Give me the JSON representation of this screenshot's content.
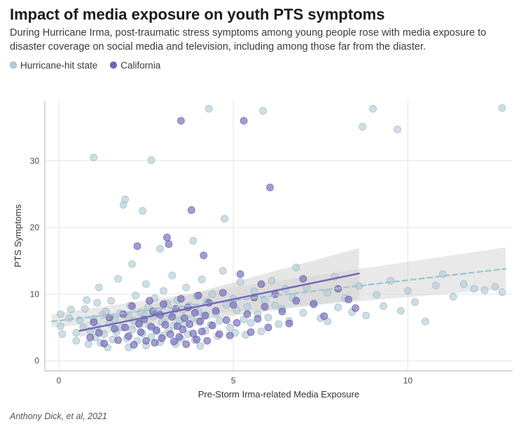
{
  "title": "Impact of media exposure on youth PTS symptoms",
  "subtitle": "During Hurricane Irma,  post-traumatic stress symptoms among young people rose with media exposure to disaster coverage on social media and television, including among those far from the diaster.",
  "credit": "Anthony Dick, et al, 2021",
  "legend": {
    "series1": {
      "label": "Hurricane-hit state",
      "color": "#b4cdd6"
    },
    "series2": {
      "label": "California",
      "color": "#7267b7"
    }
  },
  "chart": {
    "type": "scatter",
    "xlabel": "Pre-Storm Irma-related Media Exposure",
    "ylabel": "PTS Symptoms",
    "xlim": [
      -0.4,
      13.0
    ],
    "ylim": [
      -1.5,
      39
    ],
    "xticks": [
      0,
      5,
      10
    ],
    "yticks": [
      0,
      10,
      20,
      30
    ],
    "background_color": "#ffffff",
    "panel_bg": "#ffffff",
    "grid_color": "#e4e4e4",
    "axis_color": "#bdbdbd",
    "label_fontsize": 13,
    "tick_fontsize": 12,
    "marker_radius": 5,
    "marker_opacity": 0.65,
    "series": {
      "hurricane": {
        "color": "#b4cdd6",
        "stroke": "#8ab1bf",
        "line": {
          "x1": -0.2,
          "y1": 5.9,
          "x2": 12.8,
          "y2": 13.8,
          "dash": "7,5",
          "width": 2.3,
          "color": "#9cc5d3"
        },
        "ribbon": {
          "x1": -0.2,
          "y1_lo": 5.0,
          "y1_hi": 7.0,
          "x2": 12.8,
          "y2_lo": 10.8,
          "y2_hi": 17.0,
          "color": "#d7d7d7",
          "opacity": 0.55
        },
        "points": [
          [
            0.05,
            5.2
          ],
          [
            0.05,
            7.0
          ],
          [
            0.1,
            4.0
          ],
          [
            0.3,
            6.4
          ],
          [
            0.35,
            7.7
          ],
          [
            0.5,
            3.0
          ],
          [
            0.5,
            4.2
          ],
          [
            0.6,
            6.1
          ],
          [
            0.7,
            5.0
          ],
          [
            0.75,
            7.8
          ],
          [
            0.8,
            9.1
          ],
          [
            0.85,
            2.5
          ],
          [
            0.9,
            4.5
          ],
          [
            1.0,
            6.3
          ],
          [
            1.0,
            30.5
          ],
          [
            1.05,
            3.5
          ],
          [
            1.1,
            8.7
          ],
          [
            1.1,
            5.1
          ],
          [
            1.15,
            11.0
          ],
          [
            1.2,
            2.7
          ],
          [
            1.25,
            6.9
          ],
          [
            1.3,
            4.0
          ],
          [
            1.35,
            7.4
          ],
          [
            1.4,
            2.0
          ],
          [
            1.45,
            5.6
          ],
          [
            1.5,
            9.0
          ],
          [
            1.55,
            3.2
          ],
          [
            1.6,
            6.2
          ],
          [
            1.65,
            4.3
          ],
          [
            1.7,
            12.3
          ],
          [
            1.75,
            7.1
          ],
          [
            1.8,
            5.0
          ],
          [
            1.85,
            23.4
          ],
          [
            1.9,
            24.2
          ],
          [
            1.95,
            3.4
          ],
          [
            2.0,
            6.5
          ],
          [
            2.0,
            2.0
          ],
          [
            2.05,
            8.3
          ],
          [
            2.1,
            14.5
          ],
          [
            2.1,
            4.7
          ],
          [
            2.15,
            6.0
          ],
          [
            2.2,
            9.8
          ],
          [
            2.25,
            3.0
          ],
          [
            2.3,
            5.5
          ],
          [
            2.35,
            7.2
          ],
          [
            2.4,
            22.5
          ],
          [
            2.4,
            4.1
          ],
          [
            2.45,
            6.8
          ],
          [
            2.5,
            11.5
          ],
          [
            2.5,
            2.3
          ],
          [
            2.55,
            8.0
          ],
          [
            2.6,
            5.3
          ],
          [
            2.65,
            30.1
          ],
          [
            2.65,
            3.6
          ],
          [
            2.7,
            6.6
          ],
          [
            2.75,
            9.4
          ],
          [
            2.8,
            4.4
          ],
          [
            2.85,
            7.5
          ],
          [
            2.9,
            16.8
          ],
          [
            2.9,
            2.8
          ],
          [
            2.95,
            5.8
          ],
          [
            3.0,
            10.5
          ],
          [
            3.0,
            3.8
          ],
          [
            3.05,
            6.4
          ],
          [
            3.1,
            8.6
          ],
          [
            3.15,
            4.6
          ],
          [
            3.2,
            7.0
          ],
          [
            3.25,
            12.8
          ],
          [
            3.3,
            5.2
          ],
          [
            3.35,
            2.5
          ],
          [
            3.4,
            9.1
          ],
          [
            3.45,
            6.1
          ],
          [
            3.5,
            3.3
          ],
          [
            3.55,
            7.7
          ],
          [
            3.6,
            5.5
          ],
          [
            3.65,
            11.0
          ],
          [
            3.7,
            4.0
          ],
          [
            3.75,
            8.2
          ],
          [
            3.8,
            6.3
          ],
          [
            3.85,
            18.0
          ],
          [
            3.9,
            3.1
          ],
          [
            3.95,
            9.7
          ],
          [
            4.0,
            5.9
          ],
          [
            4.0,
            7.4
          ],
          [
            4.05,
            2.2
          ],
          [
            4.1,
            12.2
          ],
          [
            4.15,
            6.7
          ],
          [
            4.2,
            4.5
          ],
          [
            4.25,
            8.9
          ],
          [
            4.3,
            37.8
          ],
          [
            4.35,
            5.4
          ],
          [
            4.4,
            10.0
          ],
          [
            4.5,
            7.1
          ],
          [
            4.55,
            3.7
          ],
          [
            4.6,
            6.0
          ],
          [
            4.7,
            13.5
          ],
          [
            4.75,
            21.3
          ],
          [
            4.8,
            8.4
          ],
          [
            4.9,
            5.0
          ],
          [
            5.0,
            9.3
          ],
          [
            5.05,
            4.2
          ],
          [
            5.1,
            7.6
          ],
          [
            5.2,
            11.8
          ],
          [
            5.3,
            6.2
          ],
          [
            5.35,
            3.9
          ],
          [
            5.4,
            8.1
          ],
          [
            5.5,
            5.7
          ],
          [
            5.6,
            10.4
          ],
          [
            5.7,
            7.0
          ],
          [
            5.8,
            4.4
          ],
          [
            5.85,
            37.5
          ],
          [
            5.9,
            9.0
          ],
          [
            6.0,
            6.5
          ],
          [
            6.1,
            12.0
          ],
          [
            6.2,
            8.3
          ],
          [
            6.3,
            5.5
          ],
          [
            6.4,
            7.8
          ],
          [
            6.5,
            10.8
          ],
          [
            6.6,
            6.0
          ],
          [
            6.7,
            9.5
          ],
          [
            6.8,
            14.0
          ],
          [
            7.0,
            7.2
          ],
          [
            7.1,
            11.0
          ],
          [
            7.3,
            8.7
          ],
          [
            7.5,
            6.4
          ],
          [
            7.7,
            5.9
          ],
          [
            7.7,
            10.2
          ],
          [
            7.9,
            12.6
          ],
          [
            8.0,
            8.0
          ],
          [
            8.2,
            9.4
          ],
          [
            8.4,
            7.3
          ],
          [
            8.6,
            11.2
          ],
          [
            8.7,
            35.1
          ],
          [
            8.8,
            6.8
          ],
          [
            9.0,
            37.8
          ],
          [
            9.1,
            9.9
          ],
          [
            9.3,
            8.2
          ],
          [
            9.5,
            12.0
          ],
          [
            9.7,
            34.7
          ],
          [
            9.8,
            7.5
          ],
          [
            10.0,
            10.5
          ],
          [
            10.2,
            8.8
          ],
          [
            10.5,
            5.9
          ],
          [
            10.8,
            11.3
          ],
          [
            11.0,
            13.0
          ],
          [
            11.3,
            9.6
          ],
          [
            11.6,
            11.5
          ],
          [
            11.9,
            10.8
          ],
          [
            12.2,
            10.6
          ],
          [
            12.5,
            11.1
          ],
          [
            12.7,
            10.3
          ],
          [
            12.7,
            37.9
          ]
        ]
      },
      "california": {
        "color": "#7267b7",
        "stroke": "#594aa7",
        "line": {
          "x1": 0.6,
          "y1": 4.5,
          "x2": 8.6,
          "y2": 13.1,
          "dash": "none",
          "width": 2.4,
          "color": "#7267b7"
        },
        "ribbon": {
          "x1": 0.6,
          "y1_lo": 3.6,
          "y1_hi": 5.5,
          "x2": 8.6,
          "y2_lo": 9.3,
          "y2_hi": 16.9,
          "color": "#d2d2d2",
          "opacity": 0.55
        },
        "points": [
          [
            0.9,
            3.5
          ],
          [
            1.0,
            5.8
          ],
          [
            1.15,
            4.2
          ],
          [
            1.3,
            2.6
          ],
          [
            1.45,
            6.5
          ],
          [
            1.6,
            4.8
          ],
          [
            1.7,
            3.1
          ],
          [
            1.85,
            7.0
          ],
          [
            1.9,
            5.0
          ],
          [
            2.0,
            3.7
          ],
          [
            2.1,
            8.2
          ],
          [
            2.15,
            2.4
          ],
          [
            2.25,
            17.2
          ],
          [
            2.3,
            5.6
          ],
          [
            2.35,
            4.3
          ],
          [
            2.45,
            6.2
          ],
          [
            2.5,
            3.0
          ],
          [
            2.6,
            9.0
          ],
          [
            2.65,
            5.1
          ],
          [
            2.7,
            7.4
          ],
          [
            2.75,
            2.7
          ],
          [
            2.8,
            4.6
          ],
          [
            2.9,
            6.9
          ],
          [
            2.95,
            3.4
          ],
          [
            3.0,
            8.5
          ],
          [
            3.05,
            5.4
          ],
          [
            3.1,
            18.5
          ],
          [
            3.15,
            17.5
          ],
          [
            3.2,
            4.0
          ],
          [
            3.25,
            6.6
          ],
          [
            3.3,
            2.9
          ],
          [
            3.35,
            7.8
          ],
          [
            3.4,
            5.2
          ],
          [
            3.45,
            3.6
          ],
          [
            3.5,
            36.0
          ],
          [
            3.5,
            9.3
          ],
          [
            3.55,
            4.7
          ],
          [
            3.6,
            6.4
          ],
          [
            3.65,
            2.5
          ],
          [
            3.7,
            8.0
          ],
          [
            3.75,
            5.5
          ],
          [
            3.8,
            22.6
          ],
          [
            3.85,
            4.1
          ],
          [
            3.9,
            7.2
          ],
          [
            3.95,
            3.2
          ],
          [
            4.0,
            9.8
          ],
          [
            4.05,
            5.9
          ],
          [
            4.1,
            4.4
          ],
          [
            4.15,
            15.8
          ],
          [
            4.2,
            6.8
          ],
          [
            4.25,
            3.0
          ],
          [
            4.3,
            8.7
          ],
          [
            4.4,
            5.3
          ],
          [
            4.5,
            7.5
          ],
          [
            4.6,
            4.0
          ],
          [
            4.7,
            10.2
          ],
          [
            4.8,
            6.1
          ],
          [
            4.9,
            3.8
          ],
          [
            5.0,
            8.4
          ],
          [
            5.1,
            5.7
          ],
          [
            5.2,
            13.0
          ],
          [
            5.3,
            36.0
          ],
          [
            5.4,
            7.0
          ],
          [
            5.5,
            4.3
          ],
          [
            5.6,
            9.5
          ],
          [
            5.7,
            6.3
          ],
          [
            5.8,
            11.5
          ],
          [
            5.9,
            8.1
          ],
          [
            6.0,
            5.0
          ],
          [
            6.05,
            26.0
          ],
          [
            6.2,
            10.0
          ],
          [
            6.4,
            7.4
          ],
          [
            6.6,
            5.6
          ],
          [
            6.8,
            9.0
          ],
          [
            7.0,
            12.3
          ],
          [
            7.3,
            8.5
          ],
          [
            7.6,
            6.7
          ],
          [
            8.0,
            10.8
          ],
          [
            8.3,
            9.2
          ],
          [
            8.5,
            7.9
          ]
        ]
      }
    }
  }
}
